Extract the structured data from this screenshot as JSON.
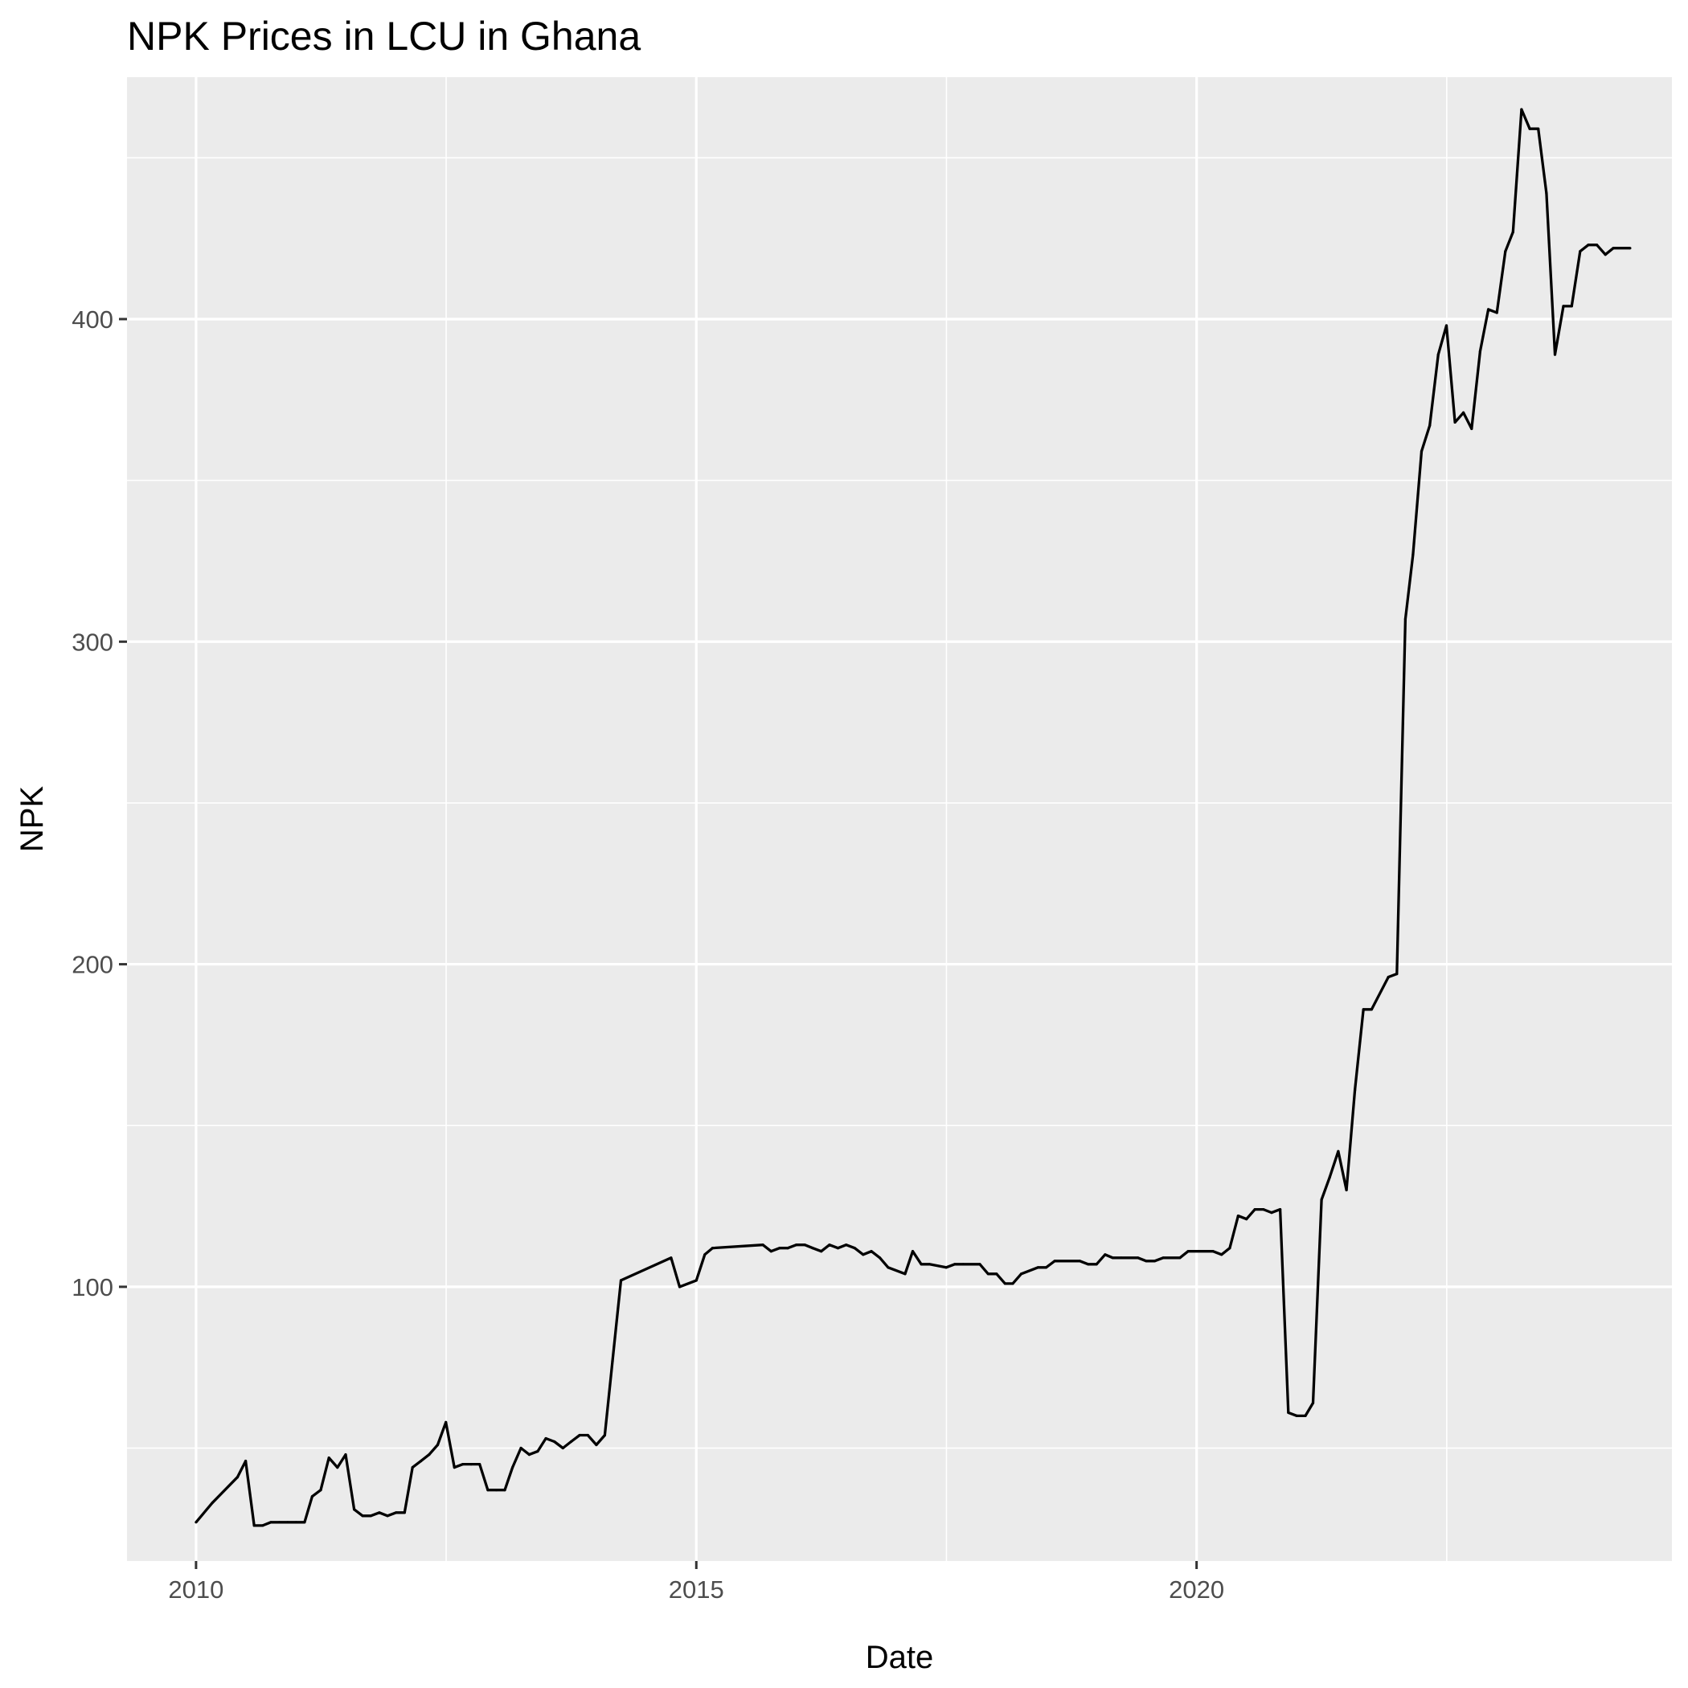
{
  "chart_data": {
    "type": "line",
    "title": "NPK Prices in LCU in Ghana",
    "xlabel": "Date",
    "ylabel": "NPK",
    "xlim": [
      "2009-04-24",
      "2024-10-01"
    ],
    "ylim": [
      15,
      475
    ],
    "x_ticks": [
      {
        "value": "2010-01-01",
        "label": "2010"
      },
      {
        "value": "2015-01-01",
        "label": "2015"
      },
      {
        "value": "2020-01-01",
        "label": "2020"
      }
    ],
    "x_minor_ticks": [
      "2012-07-02",
      "2017-07-02",
      "2022-07-02"
    ],
    "y_ticks": [
      {
        "value": 100,
        "label": "100"
      },
      {
        "value": 200,
        "label": "200"
      },
      {
        "value": 300,
        "label": "300"
      },
      {
        "value": 400,
        "label": "400"
      }
    ],
    "y_minor_ticks": [
      50,
      150,
      250,
      350,
      450
    ],
    "grid": true,
    "legend": "none",
    "colors": {
      "panel": "#ebebeb",
      "grid": "#ffffff",
      "line": "#000000",
      "tick_label": "#4d4d4d",
      "tick": "#333333"
    },
    "series": [
      {
        "points": [
          [
            "2010-01-01",
            27
          ],
          [
            "2010-03-01",
            33
          ],
          [
            "2010-06-01",
            41
          ],
          [
            "2010-07-01",
            46
          ],
          [
            "2010-08-01",
            26
          ],
          [
            "2010-09-01",
            26
          ],
          [
            "2010-10-01",
            27
          ],
          [
            "2010-11-01",
            27
          ],
          [
            "2010-12-01",
            27
          ],
          [
            "2011-01-01",
            27
          ],
          [
            "2011-02-01",
            27
          ],
          [
            "2011-03-01",
            35
          ],
          [
            "2011-04-01",
            37
          ],
          [
            "2011-05-01",
            47
          ],
          [
            "2011-06-01",
            44
          ],
          [
            "2011-07-01",
            48
          ],
          [
            "2011-08-01",
            31
          ],
          [
            "2011-09-01",
            29
          ],
          [
            "2011-10-01",
            29
          ],
          [
            "2011-11-01",
            30
          ],
          [
            "2011-12-01",
            29
          ],
          [
            "2012-01-01",
            30
          ],
          [
            "2012-02-01",
            30
          ],
          [
            "2012-03-01",
            44
          ],
          [
            "2012-04-01",
            46
          ],
          [
            "2012-05-01",
            48
          ],
          [
            "2012-06-01",
            51
          ],
          [
            "2012-07-01",
            58
          ],
          [
            "2012-08-01",
            44
          ],
          [
            "2012-09-01",
            45
          ],
          [
            "2012-10-01",
            45
          ],
          [
            "2012-11-01",
            45
          ],
          [
            "2012-12-01",
            37
          ],
          [
            "2013-01-01",
            37
          ],
          [
            "2013-02-01",
            37
          ],
          [
            "2013-03-01",
            44
          ],
          [
            "2013-04-01",
            50
          ],
          [
            "2013-05-01",
            48
          ],
          [
            "2013-06-01",
            49
          ],
          [
            "2013-07-01",
            53
          ],
          [
            "2013-08-01",
            52
          ],
          [
            "2013-09-01",
            50
          ],
          [
            "2013-10-01",
            52
          ],
          [
            "2013-11-01",
            54
          ],
          [
            "2013-12-01",
            54
          ],
          [
            "2014-01-01",
            51
          ],
          [
            "2014-02-01",
            54
          ],
          [
            "2014-03-01",
            77
          ],
          [
            "2014-04-01",
            102
          ],
          [
            "2014-10-01",
            109
          ],
          [
            "2014-11-01",
            100
          ],
          [
            "2015-01-01",
            102
          ],
          [
            "2015-02-01",
            110
          ],
          [
            "2015-03-01",
            112
          ],
          [
            "2015-09-01",
            113
          ],
          [
            "2015-10-01",
            111
          ],
          [
            "2015-11-01",
            112
          ],
          [
            "2015-12-01",
            112
          ],
          [
            "2016-01-01",
            113
          ],
          [
            "2016-02-01",
            113
          ],
          [
            "2016-03-01",
            112
          ],
          [
            "2016-04-01",
            111
          ],
          [
            "2016-05-01",
            113
          ],
          [
            "2016-06-01",
            112
          ],
          [
            "2016-07-01",
            113
          ],
          [
            "2016-08-01",
            112
          ],
          [
            "2016-09-01",
            110
          ],
          [
            "2016-10-01",
            111
          ],
          [
            "2016-11-01",
            109
          ],
          [
            "2016-12-01",
            106
          ],
          [
            "2017-02-01",
            104
          ],
          [
            "2017-03-01",
            111
          ],
          [
            "2017-04-01",
            107
          ],
          [
            "2017-05-01",
            107
          ],
          [
            "2017-07-01",
            106
          ],
          [
            "2017-08-01",
            107
          ],
          [
            "2017-09-01",
            107
          ],
          [
            "2017-11-01",
            107
          ],
          [
            "2017-12-01",
            104
          ],
          [
            "2018-01-01",
            104
          ],
          [
            "2018-02-01",
            101
          ],
          [
            "2018-03-01",
            101
          ],
          [
            "2018-04-01",
            104
          ],
          [
            "2018-06-01",
            106
          ],
          [
            "2018-07-01",
            106
          ],
          [
            "2018-08-01",
            108
          ],
          [
            "2018-11-01",
            108
          ],
          [
            "2018-12-01",
            107
          ],
          [
            "2019-01-01",
            107
          ],
          [
            "2019-02-01",
            110
          ],
          [
            "2019-03-01",
            109
          ],
          [
            "2019-04-01",
            109
          ],
          [
            "2019-06-01",
            109
          ],
          [
            "2019-07-01",
            108
          ],
          [
            "2019-08-01",
            108
          ],
          [
            "2019-09-01",
            109
          ],
          [
            "2019-11-01",
            109
          ],
          [
            "2019-12-01",
            111
          ],
          [
            "2020-03-01",
            111
          ],
          [
            "2020-04-01",
            110
          ],
          [
            "2020-05-01",
            112
          ],
          [
            "2020-06-01",
            122
          ],
          [
            "2020-07-01",
            121
          ],
          [
            "2020-08-01",
            124
          ],
          [
            "2020-09-01",
            124
          ],
          [
            "2020-10-01",
            123
          ],
          [
            "2020-11-01",
            124
          ],
          [
            "2020-12-01",
            61
          ],
          [
            "2021-01-01",
            60
          ],
          [
            "2021-02-01",
            60
          ],
          [
            "2021-03-01",
            64
          ],
          [
            "2021-04-01",
            127
          ],
          [
            "2021-05-01",
            134
          ],
          [
            "2021-06-01",
            142
          ],
          [
            "2021-07-01",
            130
          ],
          [
            "2021-08-01",
            161
          ],
          [
            "2021-09-01",
            186
          ],
          [
            "2021-10-01",
            186
          ],
          [
            "2021-12-01",
            196
          ],
          [
            "2022-01-01",
            197
          ],
          [
            "2022-02-01",
            307
          ],
          [
            "2022-03-01",
            327
          ],
          [
            "2022-04-01",
            359
          ],
          [
            "2022-05-01",
            367
          ],
          [
            "2022-06-01",
            389
          ],
          [
            "2022-07-01",
            398
          ],
          [
            "2022-08-01",
            368
          ],
          [
            "2022-09-01",
            371
          ],
          [
            "2022-10-01",
            366
          ],
          [
            "2022-11-01",
            390
          ],
          [
            "2022-12-01",
            403
          ],
          [
            "2023-01-01",
            402
          ],
          [
            "2023-02-01",
            421
          ],
          [
            "2023-03-01",
            427
          ],
          [
            "2023-04-01",
            465
          ],
          [
            "2023-05-01",
            459
          ],
          [
            "2023-06-01",
            459
          ],
          [
            "2023-07-01",
            439
          ],
          [
            "2023-08-01",
            389
          ],
          [
            "2023-09-01",
            404
          ],
          [
            "2023-10-01",
            404
          ],
          [
            "2023-11-01",
            421
          ],
          [
            "2023-12-01",
            423
          ],
          [
            "2024-01-01",
            423
          ],
          [
            "2024-02-01",
            420
          ],
          [
            "2024-03-01",
            422
          ],
          [
            "2024-05-01",
            422
          ]
        ]
      }
    ]
  }
}
